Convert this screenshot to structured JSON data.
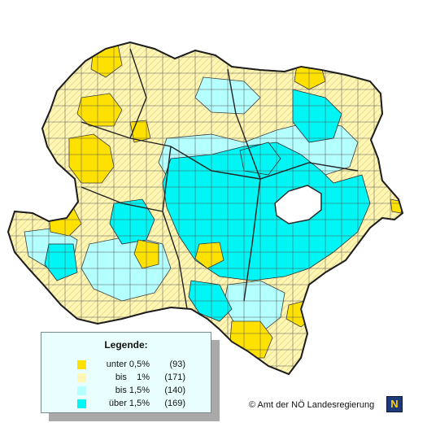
{
  "colors": {
    "unter_0_5": "#ffe100",
    "bis_1": "#fff6b4",
    "bis_1_5": "#b4ffff",
    "ueber_1_5": "#00f5f5",
    "border": "#3c3c3c"
  },
  "legend": {
    "title": "Legende:",
    "items": [
      {
        "label": "unter 0,5%",
        "count": "(93)",
        "color": "#ffe100"
      },
      {
        "label": "bis    1%",
        "count": "(171)",
        "color": "#fff6b4"
      },
      {
        "label": "bis 1,5%",
        "count": "(140)",
        "color": "#b4ffff"
      },
      {
        "label": "über 1,5%",
        "count": "(169)",
        "color": "#00f5f5"
      }
    ]
  },
  "copyright": "© Amt der NÖ Landesregierung",
  "logo_text": "N"
}
